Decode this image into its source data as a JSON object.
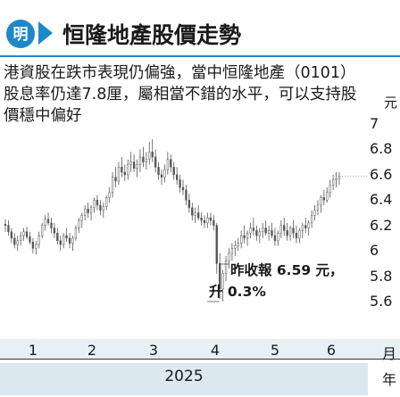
{
  "header": {
    "title": "恒隆地產股價走勢",
    "logo_icon": "newspaper-logo-icon",
    "arrow_icon": "play-arrow-icon",
    "accent_color": "#1e88c8",
    "rule_color": "#1e88c8"
  },
  "description": "港資股在跌市表現仍偏強，當中恒隆地產（0101）股息率仍達7.8厘，屬相當不錯的水平，可以支持股價穩中偏好",
  "annotation": {
    "line1": "昨收報 6.59 元，",
    "line2": "升 0.3%"
  },
  "chart_data": {
    "type": "candlestick",
    "y_unit": "元",
    "x_unit": "月",
    "year_unit": "年",
    "year": "2025",
    "months": [
      "1",
      "2",
      "3",
      "4",
      "5",
      "6"
    ],
    "y_ticks": [
      7.0,
      6.8,
      6.6,
      6.4,
      6.2,
      6.0,
      5.8,
      5.6
    ],
    "ylim": [
      5.5,
      7.1
    ],
    "last_close": 6.59,
    "change_pct": 0.3,
    "grid": false,
    "ohlc": [
      [
        6.21,
        6.25,
        6.15,
        6.2
      ],
      [
        6.2,
        6.24,
        6.12,
        6.15
      ],
      [
        6.15,
        6.18,
        6.06,
        6.1
      ],
      [
        6.1,
        6.14,
        6.02,
        6.05
      ],
      [
        6.05,
        6.12,
        6.0,
        6.08
      ],
      [
        6.08,
        6.15,
        6.04,
        6.12
      ],
      [
        6.12,
        6.18,
        6.08,
        6.15
      ],
      [
        6.15,
        6.19,
        6.09,
        6.11
      ],
      [
        6.11,
        6.15,
        6.05,
        6.07
      ],
      [
        6.07,
        6.1,
        5.98,
        6.02
      ],
      [
        6.02,
        6.08,
        5.97,
        6.05
      ],
      [
        6.05,
        6.15,
        6.02,
        6.12
      ],
      [
        6.12,
        6.22,
        6.1,
        6.2
      ],
      [
        6.2,
        6.28,
        6.16,
        6.25
      ],
      [
        6.25,
        6.3,
        6.2,
        6.22
      ],
      [
        6.22,
        6.26,
        6.14,
        6.18
      ],
      [
        6.18,
        6.22,
        6.1,
        6.14
      ],
      [
        6.14,
        6.18,
        6.05,
        6.08
      ],
      [
        6.08,
        6.12,
        6.0,
        6.05
      ],
      [
        6.05,
        6.14,
        6.02,
        6.12
      ],
      [
        6.12,
        6.18,
        6.07,
        6.1
      ],
      [
        6.1,
        6.14,
        6.02,
        6.06
      ],
      [
        6.06,
        6.12,
        6.0,
        6.1
      ],
      [
        6.1,
        6.2,
        6.08,
        6.18
      ],
      [
        6.18,
        6.26,
        6.14,
        6.24
      ],
      [
        6.24,
        6.3,
        6.18,
        6.28
      ],
      [
        6.28,
        6.36,
        6.24,
        6.33
      ],
      [
        6.33,
        6.38,
        6.26,
        6.3
      ],
      [
        6.3,
        6.36,
        6.24,
        6.34
      ],
      [
        6.34,
        6.42,
        6.3,
        6.4
      ],
      [
        6.4,
        6.44,
        6.32,
        6.36
      ],
      [
        6.36,
        6.4,
        6.28,
        6.32
      ],
      [
        6.32,
        6.38,
        6.26,
        6.35
      ],
      [
        6.35,
        6.44,
        6.32,
        6.42
      ],
      [
        6.42,
        6.5,
        6.38,
        6.46
      ],
      [
        6.46,
        6.62,
        6.42,
        6.58
      ],
      [
        6.58,
        6.66,
        6.5,
        6.55
      ],
      [
        6.55,
        6.7,
        6.52,
        6.66
      ],
      [
        6.66,
        6.74,
        6.58,
        6.62
      ],
      [
        6.62,
        6.68,
        6.55,
        6.6
      ],
      [
        6.6,
        6.72,
        6.56,
        6.68
      ],
      [
        6.68,
        6.78,
        6.62,
        6.7
      ],
      [
        6.7,
        6.76,
        6.62,
        6.65
      ],
      [
        6.65,
        6.72,
        6.58,
        6.68
      ],
      [
        6.68,
        6.8,
        6.62,
        6.74
      ],
      [
        6.74,
        6.82,
        6.66,
        6.7
      ],
      [
        6.7,
        6.78,
        6.64,
        6.72
      ],
      [
        6.72,
        6.86,
        6.68,
        6.78
      ],
      [
        6.78,
        6.88,
        6.7,
        6.74
      ],
      [
        6.74,
        6.8,
        6.62,
        6.66
      ],
      [
        6.66,
        6.7,
        6.56,
        6.6
      ],
      [
        6.6,
        6.64,
        6.52,
        6.58
      ],
      [
        6.58,
        6.68,
        6.54,
        6.64
      ],
      [
        6.64,
        6.78,
        6.6,
        6.72
      ],
      [
        6.72,
        6.76,
        6.62,
        6.66
      ],
      [
        6.66,
        6.7,
        6.56,
        6.6
      ],
      [
        6.6,
        6.66,
        6.52,
        6.56
      ],
      [
        6.56,
        6.6,
        6.46,
        6.5
      ],
      [
        6.5,
        6.56,
        6.44,
        6.48
      ],
      [
        6.48,
        6.52,
        6.36,
        6.4
      ],
      [
        6.4,
        6.45,
        6.3,
        6.34
      ],
      [
        6.34,
        6.38,
        6.24,
        6.28
      ],
      [
        6.28,
        6.34,
        6.22,
        6.3
      ],
      [
        6.3,
        6.36,
        6.24,
        6.26
      ],
      [
        6.26,
        6.3,
        6.2,
        6.24
      ],
      [
        6.24,
        6.28,
        6.18,
        6.22
      ],
      [
        6.22,
        6.3,
        6.18,
        6.26
      ],
      [
        6.26,
        6.3,
        6.2,
        6.24
      ],
      [
        6.24,
        6.28,
        6.16,
        6.2
      ],
      [
        6.2,
        6.22,
        5.82,
        5.9
      ],
      [
        5.9,
        5.98,
        5.62,
        5.7
      ],
      [
        5.7,
        5.85,
        5.6,
        5.82
      ],
      [
        5.82,
        5.96,
        5.76,
        5.92
      ],
      [
        5.92,
        6.02,
        5.86,
        5.98
      ],
      [
        5.98,
        6.06,
        5.92,
        6.02
      ],
      [
        6.02,
        6.08,
        5.96,
        6.04
      ],
      [
        6.04,
        6.1,
        6.0,
        6.06
      ],
      [
        6.06,
        6.16,
        6.02,
        6.12
      ],
      [
        6.12,
        6.2,
        6.06,
        6.1
      ],
      [
        6.1,
        6.16,
        6.04,
        6.14
      ],
      [
        6.14,
        6.22,
        6.1,
        6.18
      ],
      [
        6.18,
        6.26,
        6.12,
        6.16
      ],
      [
        6.16,
        6.2,
        6.08,
        6.12
      ],
      [
        6.12,
        6.18,
        6.06,
        6.15
      ],
      [
        6.15,
        6.22,
        6.1,
        6.18
      ],
      [
        6.18,
        6.24,
        6.12,
        6.14
      ],
      [
        6.14,
        6.2,
        6.08,
        6.16
      ],
      [
        6.16,
        6.22,
        6.1,
        6.12
      ],
      [
        6.12,
        6.18,
        6.04,
        6.08
      ],
      [
        6.08,
        6.16,
        6.04,
        6.14
      ],
      [
        6.14,
        6.24,
        6.1,
        6.2
      ],
      [
        6.2,
        6.26,
        6.12,
        6.16
      ],
      [
        6.16,
        6.22,
        6.08,
        6.12
      ],
      [
        6.12,
        6.2,
        6.08,
        6.18
      ],
      [
        6.18,
        6.24,
        6.1,
        6.14
      ],
      [
        6.14,
        6.2,
        6.06,
        6.1
      ],
      [
        6.1,
        6.18,
        6.06,
        6.16
      ],
      [
        6.16,
        6.22,
        6.1,
        6.2
      ],
      [
        6.2,
        6.26,
        6.14,
        6.18
      ],
      [
        6.18,
        6.24,
        6.12,
        6.22
      ],
      [
        6.22,
        6.32,
        6.18,
        6.28
      ],
      [
        6.28,
        6.36,
        6.24,
        6.32
      ],
      [
        6.32,
        6.4,
        6.28,
        6.36
      ],
      [
        6.36,
        6.44,
        6.3,
        6.42
      ],
      [
        6.42,
        6.48,
        6.36,
        6.4
      ],
      [
        6.4,
        6.5,
        6.38,
        6.46
      ],
      [
        6.46,
        6.56,
        6.42,
        6.52
      ],
      [
        6.52,
        6.6,
        6.48,
        6.56
      ],
      [
        6.56,
        6.62,
        6.5,
        6.57
      ],
      [
        6.57,
        6.62,
        6.52,
        6.59
      ]
    ],
    "colors": {
      "candle": "#555555",
      "accent": "#1e88c8",
      "axis_band": "#e7f0f5",
      "year_band": "#dbe8f0"
    }
  }
}
